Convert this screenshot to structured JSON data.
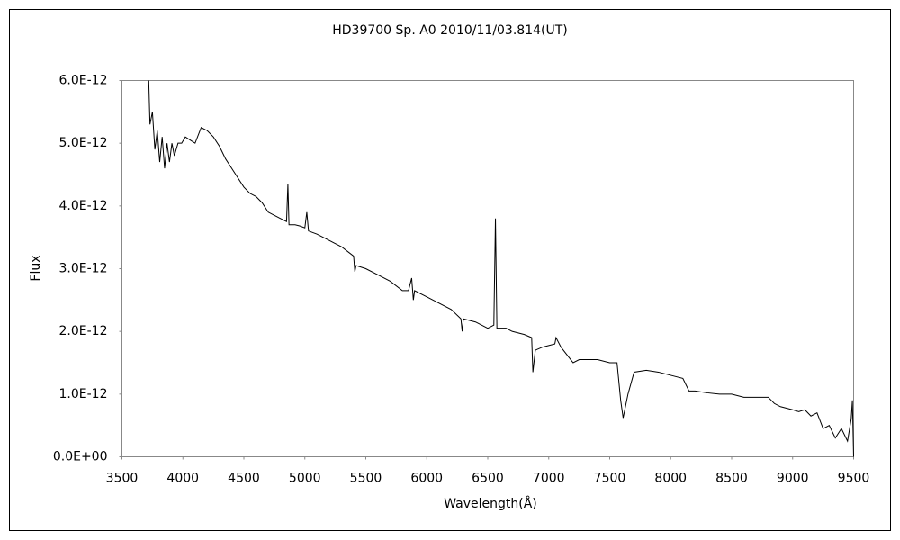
{
  "chart_data": {
    "type": "line",
    "title": "HD39700   Sp. A0  2010/11/03.814(UT)",
    "x_label": "Wavelength(Å)",
    "y_label": "Flux",
    "color": "#000000",
    "grid": false,
    "xlim": [
      3500,
      9500
    ],
    "ylim": [
      0,
      6e-12
    ],
    "xticks": [
      3500,
      4000,
      4500,
      5000,
      5500,
      6000,
      6500,
      7000,
      7500,
      8000,
      8500,
      9000,
      9500
    ],
    "yticks": [
      {
        "value": 0,
        "label": "0.0E+00"
      },
      {
        "value": 1e-12,
        "label": "1.0E-12"
      },
      {
        "value": 2e-12,
        "label": "2.0E-12"
      },
      {
        "value": 3e-12,
        "label": "3.0E-12"
      },
      {
        "value": 4e-12,
        "label": "4.0E-12"
      },
      {
        "value": 5e-12,
        "label": "5.0E-12"
      },
      {
        "value": 6e-12,
        "label": "6.0E-12"
      }
    ],
    "x": [
      3720,
      3730,
      3750,
      3770,
      3790,
      3810,
      3830,
      3850,
      3870,
      3890,
      3910,
      3930,
      3960,
      3990,
      4020,
      4060,
      4100,
      4150,
      4200,
      4250,
      4300,
      4350,
      4400,
      4450,
      4500,
      4550,
      4600,
      4650,
      4700,
      4750,
      4800,
      4850,
      4861,
      4870,
      4920,
      4960,
      5000,
      5016,
      5030,
      5100,
      5200,
      5300,
      5400,
      5410,
      5420,
      5500,
      5600,
      5700,
      5800,
      5850,
      5876,
      5890,
      5900,
      6000,
      6100,
      6200,
      6280,
      6290,
      6300,
      6400,
      6500,
      6550,
      6563,
      6575,
      6650,
      6700,
      6800,
      6860,
      6870,
      6890,
      6950,
      7050,
      7060,
      7100,
      7200,
      7250,
      7300,
      7400,
      7500,
      7560,
      7590,
      7610,
      7650,
      7700,
      7800,
      7900,
      8000,
      8100,
      8150,
      8200,
      8300,
      8400,
      8500,
      8600,
      8700,
      8800,
      8850,
      8900,
      9000,
      9050,
      9100,
      9150,
      9200,
      9250,
      9300,
      9350,
      9400,
      9450,
      9480,
      9490,
      9500
    ],
    "values": [
      6e-12,
      5.3e-12,
      5.5e-12,
      4.9e-12,
      5.2e-12,
      4.7e-12,
      5.1e-12,
      4.6e-12,
      5e-12,
      4.7e-12,
      5e-12,
      4.8e-12,
      5e-12,
      5e-12,
      5.1e-12,
      5.05e-12,
      5e-12,
      5.25e-12,
      5.2e-12,
      5.1e-12,
      4.95e-12,
      4.75e-12,
      4.6e-12,
      4.45e-12,
      4.3e-12,
      4.2e-12,
      4.15e-12,
      4.05e-12,
      3.9e-12,
      3.85e-12,
      3.8e-12,
      3.75e-12,
      4.35e-12,
      3.7e-12,
      3.7e-12,
      3.68e-12,
      3.65e-12,
      3.9e-12,
      3.6e-12,
      3.55e-12,
      3.45e-12,
      3.35e-12,
      3.2e-12,
      2.95e-12,
      3.05e-12,
      3e-12,
      2.9e-12,
      2.8e-12,
      2.65e-12,
      2.65e-12,
      2.85e-12,
      2.5e-12,
      2.65e-12,
      2.55e-12,
      2.45e-12,
      2.35e-12,
      2.2e-12,
      2e-12,
      2.2e-12,
      2.15e-12,
      2.05e-12,
      2.1e-12,
      3.8e-12,
      2.05e-12,
      2.05e-12,
      2e-12,
      1.95e-12,
      1.9e-12,
      1.35e-12,
      1.7e-12,
      1.75e-12,
      1.8e-12,
      1.9e-12,
      1.75e-12,
      1.5e-12,
      1.55e-12,
      1.55e-12,
      1.55e-12,
      1.5e-12,
      1.5e-12,
      9e-13,
      6.2e-13,
      1e-12,
      1.35e-12,
      1.38e-12,
      1.35e-12,
      1.3e-12,
      1.25e-12,
      1.05e-12,
      1.05e-12,
      1.02e-12,
      1e-12,
      1e-12,
      9.5e-13,
      9.5e-13,
      9.5e-13,
      8.5e-13,
      8e-13,
      7.5e-13,
      7.2e-13,
      7.5e-13,
      6.5e-13,
      7e-13,
      4.5e-13,
      5e-13,
      3e-13,
      4.5e-13,
      2.5e-13,
      6e-13,
      9e-13,
      0
    ]
  }
}
